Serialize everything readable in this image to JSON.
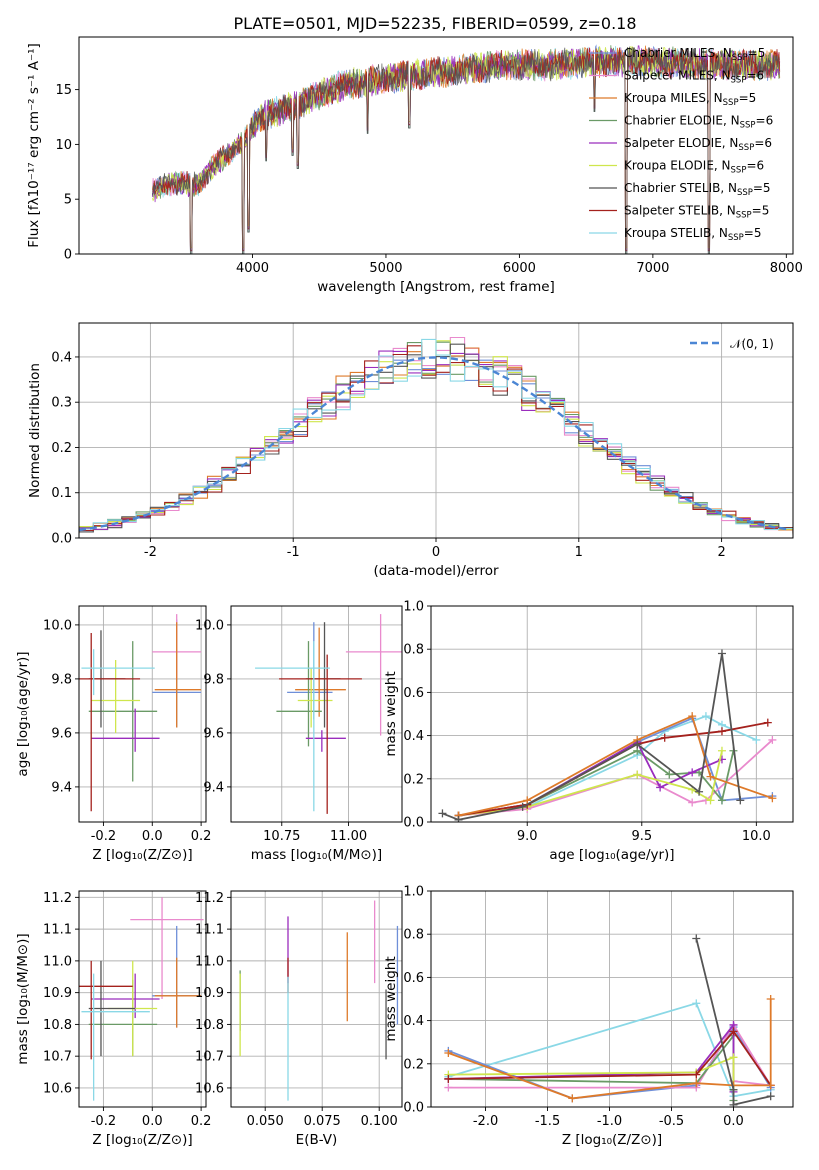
{
  "title": "PLATE=0501, MJD=52235, FIBERID=0599, z=0.18",
  "colors": {
    "chabrier_miles": "#6f8fd8",
    "salpeter_miles": "#e98acd",
    "kroupa_miles": "#de7a2a",
    "chabrier_elodie": "#6a9a66",
    "salpeter_elodie": "#9a2dbd",
    "kroupa_elodie": "#cfe64d",
    "chabrier_stelib": "#555555",
    "salpeter_stelib": "#a4211d",
    "kroupa_stelib": "#8ad8e6",
    "gaussian": "#4b86d4",
    "grid": "#b0b0b0"
  },
  "chart_data": [
    {
      "id": "spectrum",
      "type": "line",
      "xlabel": "wavelength [Angstrom, rest frame]",
      "ylabel": "Flux [fλ10⁻¹⁷ erg cm⁻² s⁻¹ A⁻¹]",
      "xlim": [
        2700,
        8050
      ],
      "ylim": [
        0,
        19.8
      ],
      "xticks": [
        4000,
        5000,
        6000,
        7000,
        8000
      ],
      "yticks": [
        0,
        5,
        10,
        15
      ],
      "grid": false,
      "legend_position": "top-right",
      "continuum_points": [
        [
          3250,
          5.8
        ],
        [
          3400,
          6.5
        ],
        [
          3600,
          6.3
        ],
        [
          3700,
          8.0
        ],
        [
          3850,
          9.5
        ],
        [
          3950,
          10.5
        ],
        [
          4050,
          12.5
        ],
        [
          4200,
          13.0
        ],
        [
          4400,
          14.0
        ],
        [
          4700,
          15.5
        ],
        [
          5000,
          16.0
        ],
        [
          5300,
          16.5
        ],
        [
          5600,
          16.8
        ],
        [
          5900,
          17.3
        ],
        [
          6200,
          17.2
        ],
        [
          6500,
          17.5
        ],
        [
          6800,
          17.6
        ],
        [
          7100,
          17.5
        ],
        [
          7400,
          17.3
        ],
        [
          7950,
          17.2
        ]
      ],
      "absorption_features": [
        [
          3540,
          0
        ],
        [
          3930,
          0
        ],
        [
          3970,
          2.0
        ],
        [
          4102,
          8.5
        ],
        [
          4300,
          9.0
        ],
        [
          4340,
          7.8
        ],
        [
          4861,
          11.0
        ],
        [
          5175,
          11.5
        ],
        [
          6563,
          13.0
        ],
        [
          6800,
          0
        ],
        [
          7420,
          0
        ]
      ],
      "series": [
        {
          "name": "Chabrier MILES",
          "nssp": "5"
        },
        {
          "name": "Salpeter MILES",
          "nssp": "6"
        },
        {
          "name": "Kroupa MILES",
          "nssp": "5"
        },
        {
          "name": "Chabrier ELODIE",
          "nssp": "6"
        },
        {
          "name": "Salpeter ELODIE",
          "nssp": "6"
        },
        {
          "name": "Kroupa ELODIE",
          "nssp": "6"
        },
        {
          "name": "Chabrier STELIB",
          "nssp": "5"
        },
        {
          "name": "Salpeter STELIB",
          "nssp": "5"
        },
        {
          "name": "Kroupa STELIB",
          "nssp": "5"
        }
      ]
    },
    {
      "id": "residuals",
      "type": "line",
      "xlabel": "(data-model)/error",
      "ylabel": "Normed distribution",
      "xlim": [
        -2.5,
        2.5
      ],
      "ylim": [
        0,
        0.475
      ],
      "xticks": [
        -2,
        -1,
        0,
        1,
        2
      ],
      "yticks": [
        0.0,
        0.1,
        0.2,
        0.3,
        0.4
      ],
      "grid": true,
      "legend_position": "top-right",
      "gaussian_label": "𝒩(0, 1)",
      "bin_width": 0.1
    },
    {
      "id": "age_vs_z",
      "type": "scatter",
      "xlabel": "Z [log₁₀(Z/Z⊙)]",
      "ylabel": "age [log₁₀(age/yr)]",
      "xlim": [
        -0.3,
        0.22
      ],
      "ylim": [
        9.27,
        10.07
      ],
      "xticks": [
        -0.2,
        0.0,
        0.2
      ],
      "yticks": [
        9.4,
        9.6,
        9.8,
        10.0
      ],
      "grid": true,
      "points": [
        {
          "series": 0,
          "x": 0.1,
          "y": 9.75,
          "xerr": [
            0.1,
            0.1
          ],
          "yerr": [
            0.13,
            0.27
          ]
        },
        {
          "series": 1,
          "x": 0.1,
          "y": 9.9,
          "xerr": [
            0.1,
            0.1
          ],
          "yerr": [
            0.1,
            0.14
          ]
        },
        {
          "series": 2,
          "x": 0.1,
          "y": 9.76,
          "xerr": [
            0.09,
            0.1
          ],
          "yerr": [
            0.14,
            0.25
          ]
        },
        {
          "series": 3,
          "x": -0.08,
          "y": 9.68,
          "xerr": [
            0.18,
            0.1
          ],
          "yerr": [
            0.26,
            0.26
          ]
        },
        {
          "series": 4,
          "x": -0.07,
          "y": 9.58,
          "xerr": [
            0.18,
            0.1
          ],
          "yerr": [
            0.05,
            0.11
          ]
        },
        {
          "series": 5,
          "x": -0.15,
          "y": 9.72,
          "xerr": [
            0.1,
            0.1
          ],
          "yerr": [
            0.12,
            0.15
          ]
        },
        {
          "series": 6,
          "x": -0.21,
          "y": 9.8,
          "xerr": [
            0.05,
            0.1
          ],
          "yerr": [
            0.18,
            0.18
          ]
        },
        {
          "series": 7,
          "x": -0.25,
          "y": 9.8,
          "xerr": [
            0.05,
            0.2
          ],
          "yerr": [
            0.49,
            0.17
          ]
        },
        {
          "series": 8,
          "x": -0.24,
          "y": 9.84,
          "xerr": [
            0.05,
            0.25
          ],
          "yerr": [
            0.1,
            0.07
          ]
        }
      ]
    },
    {
      "id": "age_vs_mass",
      "type": "scatter",
      "xlabel": "mass [log₁₀(M/M⊙)]",
      "xlim": [
        10.56,
        11.2
      ],
      "ylim": [
        9.27,
        10.07
      ],
      "xticks": [
        10.75,
        11.0
      ],
      "xticklabels": [
        "10.75",
        "11.00"
      ],
      "yticks": [
        9.4,
        9.6,
        9.8,
        10.0
      ],
      "grid": true,
      "points": [
        {
          "series": 0,
          "x": 10.87,
          "y": 9.75,
          "xerr": [
            0.1,
            0.07
          ],
          "yerr": [
            0.1,
            0.26
          ]
        },
        {
          "series": 1,
          "x": 11.12,
          "y": 9.9,
          "xerr": [
            0.13,
            0.11
          ],
          "yerr": [
            0.31,
            0.14
          ]
        },
        {
          "series": 2,
          "x": 10.89,
          "y": 9.76,
          "xerr": [
            0.09,
            0.1
          ],
          "yerr": [
            0.1,
            0.23
          ]
        },
        {
          "series": 3,
          "x": 10.85,
          "y": 9.68,
          "xerr": [
            0.12,
            0.05
          ],
          "yerr": [
            0.13,
            0.26
          ]
        },
        {
          "series": 4,
          "x": 10.9,
          "y": 9.58,
          "xerr": [
            0.06,
            0.09
          ],
          "yerr": [
            0.05,
            0.03
          ]
        },
        {
          "series": 5,
          "x": 10.86,
          "y": 9.72,
          "xerr": [
            0.05,
            0.08
          ],
          "yerr": [
            0.1,
            0.12
          ]
        },
        {
          "series": 6,
          "x": 10.91,
          "y": 9.8,
          "xerr": [
            0.07,
            0.06
          ],
          "yerr": [
            0.18,
            0.21
          ]
        },
        {
          "series": 7,
          "x": 10.92,
          "y": 9.8,
          "xerr": [
            0.18,
            0.13
          ],
          "yerr": [
            0.5,
            0.09
          ]
        },
        {
          "series": 8,
          "x": 10.87,
          "y": 9.84,
          "xerr": [
            0.22,
            0.06
          ],
          "yerr": [
            0.53,
            0.1
          ]
        }
      ]
    },
    {
      "id": "mass_weight_vs_age",
      "type": "line",
      "xlabel": "age [log₁₀(age/yr)]",
      "ylabel": "mass weight",
      "xlim": [
        8.58,
        10.16
      ],
      "ylim": [
        0,
        1
      ],
      "xticks": [
        9.0,
        9.5,
        10.0
      ],
      "yticks": [
        0.0,
        0.2,
        0.4,
        0.6,
        0.8,
        1.0
      ],
      "grid": true,
      "series": [
        {
          "series": 0,
          "x": [
            8.7,
            9.0,
            9.48,
            9.72,
            9.85,
            10.07
          ],
          "y": [
            0.03,
            0.08,
            0.37,
            0.48,
            0.1,
            0.12
          ]
        },
        {
          "series": 1,
          "x": [
            8.7,
            9.0,
            9.48,
            9.72,
            9.78,
            10.07
          ],
          "y": [
            0.03,
            0.06,
            0.22,
            0.09,
            0.1,
            0.38
          ]
        },
        {
          "series": 2,
          "x": [
            8.7,
            9.0,
            9.48,
            9.72,
            9.8,
            10.07
          ],
          "y": [
            0.03,
            0.1,
            0.38,
            0.49,
            0.21,
            0.11
          ]
        },
        {
          "series": 3,
          "x": [
            8.7,
            9.0,
            9.48,
            9.62,
            9.75,
            9.85,
            9.9
          ],
          "y": [
            0.03,
            0.08,
            0.33,
            0.22,
            0.23,
            0.1,
            0.33
          ]
        },
        {
          "series": 4,
          "x": [
            8.7,
            9.0,
            9.48,
            9.58,
            9.72,
            9.85
          ],
          "y": [
            0.03,
            0.08,
            0.37,
            0.16,
            0.23,
            0.29
          ]
        },
        {
          "series": 5,
          "x": [
            8.7,
            9.0,
            9.48,
            9.72,
            9.8,
            9.85
          ],
          "y": [
            0.03,
            0.07,
            0.22,
            0.15,
            0.1,
            0.33
          ]
        },
        {
          "series": 6,
          "x": [
            8.63,
            8.7,
            8.98,
            9.48,
            9.75,
            9.85,
            9.93
          ],
          "y": [
            0.04,
            0.01,
            0.07,
            0.36,
            0.14,
            0.78,
            0.1
          ]
        },
        {
          "series": 7,
          "x": [
            8.7,
            9.0,
            9.48,
            9.6,
            9.85,
            10.05
          ],
          "y": [
            0.03,
            0.08,
            0.36,
            0.39,
            0.42,
            0.46
          ]
        },
        {
          "series": 8,
          "x": [
            8.7,
            9.0,
            9.48,
            9.6,
            9.78,
            9.85,
            10.0
          ],
          "y": [
            0.03,
            0.07,
            0.31,
            0.42,
            0.49,
            0.45,
            0.38
          ]
        }
      ]
    },
    {
      "id": "mass_vs_z",
      "type": "scatter",
      "xlabel": "Z [log₁₀(Z/Z⊙)]",
      "ylabel": "mass [log₁₀(M/M⊙)]",
      "xlim": [
        -0.3,
        0.22
      ],
      "ylim": [
        10.54,
        11.22
      ],
      "xticks": [
        -0.2,
        0.0,
        0.2
      ],
      "yticks": [
        10.6,
        10.7,
        10.8,
        10.9,
        11.0,
        11.1,
        11.2
      ],
      "grid": true,
      "points": [
        {
          "series": 0,
          "x": 0.1,
          "y": 10.89,
          "xerr": [
            0.1,
            0.1
          ],
          "yerr": [
            0.1,
            0.22
          ]
        },
        {
          "series": 1,
          "x": 0.04,
          "y": 11.13,
          "xerr": [
            0.13,
            0.17
          ],
          "yerr": [
            0.25,
            0.07
          ]
        },
        {
          "series": 2,
          "x": 0.1,
          "y": 10.89,
          "xerr": [
            0.09,
            0.1
          ],
          "yerr": [
            0.1,
            0.12
          ]
        },
        {
          "series": 3,
          "x": -0.08,
          "y": 10.8,
          "xerr": [
            0.18,
            0.1
          ],
          "yerr": [
            0.1,
            0.14
          ]
        },
        {
          "series": 4,
          "x": -0.07,
          "y": 10.88,
          "xerr": [
            0.18,
            0.1
          ],
          "yerr": [
            0.06,
            0.08
          ]
        },
        {
          "series": 5,
          "x": -0.08,
          "y": 10.85,
          "xerr": [
            0.1,
            0.1
          ],
          "yerr": [
            0.15,
            0.15
          ]
        },
        {
          "series": 6,
          "x": -0.21,
          "y": 10.85,
          "xerr": [
            0.05,
            0.14
          ],
          "yerr": [
            0.15,
            0.15
          ]
        },
        {
          "series": 7,
          "x": -0.25,
          "y": 10.92,
          "xerr": [
            0.05,
            0.17
          ],
          "yerr": [
            0.23,
            0.08
          ]
        },
        {
          "series": 8,
          "x": -0.24,
          "y": 10.84,
          "xerr": [
            0.05,
            0.23
          ],
          "yerr": [
            0.28,
            0.12
          ]
        }
      ]
    },
    {
      "id": "mass_vs_ebv",
      "type": "scatter",
      "xlabel": "E(B-V)",
      "xlim": [
        0.035,
        0.11
      ],
      "ylim": [
        10.54,
        11.22
      ],
      "xticks": [
        0.05,
        0.075,
        0.1
      ],
      "xticklabels": [
        "0.050",
        "0.075",
        "0.100"
      ],
      "yticks": [
        10.6,
        10.7,
        10.8,
        10.9,
        11.0,
        11.1,
        11.2
      ],
      "grid": true,
      "points": [
        {
          "series": 0,
          "x": 0.108,
          "y": 10.93,
          "yerr": [
            0.13,
            0.18
          ]
        },
        {
          "series": 1,
          "x": 0.098,
          "y": 11.09,
          "yerr": [
            0.16,
            0.1
          ]
        },
        {
          "series": 2,
          "x": 0.086,
          "y": 10.96,
          "yerr": [
            0.15,
            0.13
          ]
        },
        {
          "series": 3,
          "x": 0.039,
          "y": 10.88,
          "yerr": [
            0.1,
            0.09
          ]
        },
        {
          "series": 4,
          "x": 0.06,
          "y": 11.0,
          "yerr": [
            0.07,
            0.14
          ]
        },
        {
          "series": 5,
          "x": 0.039,
          "y": 10.83,
          "yerr": [
            0.13,
            0.13
          ]
        },
        {
          "series": 6,
          "x": 0.103,
          "y": 10.8,
          "yerr": [
            0.11,
            0.11
          ]
        },
        {
          "series": 7,
          "x": 0.06,
          "y": 10.95,
          "yerr": [
            0.05,
            0.06
          ]
        },
        {
          "series": 8,
          "x": 0.06,
          "y": 10.8,
          "yerr": [
            0.24,
            0.15
          ]
        }
      ]
    },
    {
      "id": "mass_weight_vs_z",
      "type": "line",
      "xlabel": "Z [log₁₀(Z/Z⊙)]",
      "ylabel": "mass weight",
      "xlim": [
        -2.44,
        0.48
      ],
      "ylim": [
        0,
        1
      ],
      "xticks": [
        -2.0,
        -1.5,
        -1.0,
        -0.5,
        0.0
      ],
      "yticks": [
        0.0,
        0.2,
        0.4,
        0.6,
        0.8,
        1.0
      ],
      "grid": true,
      "series": [
        {
          "series": 0,
          "x": [
            -2.3,
            -1.3,
            -0.3,
            0.0,
            0.3
          ],
          "y": [
            0.26,
            0.04,
            0.1,
            0.37,
            0.09
          ]
        },
        {
          "series": 1,
          "x": [
            -2.3,
            -0.3,
            0.0,
            0.3,
            0.0
          ],
          "y": [
            0.09,
            0.09,
            0.38,
            0.1,
            0.12
          ]
        },
        {
          "series": 2,
          "x": [
            -2.3,
            -1.3,
            -0.3,
            0.0,
            0.3,
            0.3
          ],
          "y": [
            0.25,
            0.04,
            0.11,
            0.1,
            0.1,
            0.5
          ]
        },
        {
          "series": 3,
          "x": [
            -2.3,
            -0.3,
            0.0,
            0.0
          ],
          "y": [
            0.13,
            0.11,
            0.33,
            0.03
          ]
        },
        {
          "series": 4,
          "x": [
            -2.3,
            -0.3,
            0.0,
            0.0
          ],
          "y": [
            0.13,
            0.16,
            0.38,
            0.07
          ]
        },
        {
          "series": 5,
          "x": [
            -2.3,
            -0.3,
            0.0,
            0.0
          ],
          "y": [
            0.15,
            0.16,
            0.23,
            0.08
          ]
        },
        {
          "series": 6,
          "x": [
            -0.3,
            0.0,
            0.0,
            0.3
          ],
          "y": [
            0.78,
            0.08,
            0.01,
            0.05
          ]
        },
        {
          "series": 7,
          "x": [
            -2.3,
            -0.3,
            0.0,
            0.3
          ],
          "y": [
            0.13,
            0.15,
            0.35,
            0.1
          ]
        },
        {
          "series": 8,
          "x": [
            -2.3,
            -0.3,
            0.0,
            0.3
          ],
          "y": [
            0.14,
            0.48,
            0.05,
            0.08
          ]
        }
      ]
    }
  ]
}
